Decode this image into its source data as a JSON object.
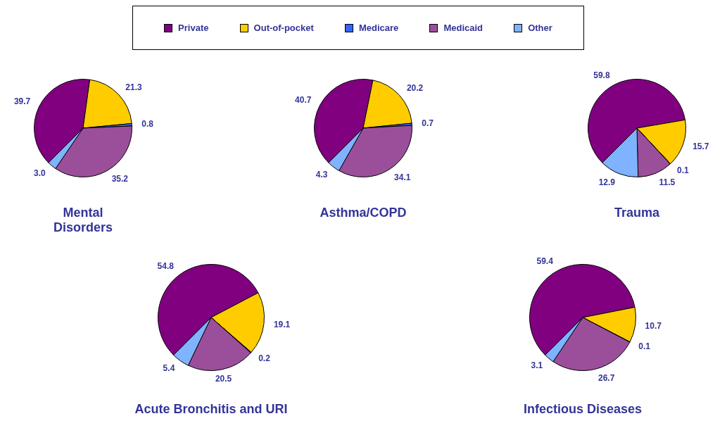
{
  "chart_data": [
    {
      "type": "pie",
      "title": "Mental Disorders",
      "categories": [
        "Private",
        "Out-of-pocket",
        "Medicare",
        "Medicaid",
        "Other"
      ],
      "values": [
        39.7,
        21.3,
        0.8,
        35.2,
        3.0
      ],
      "colors": [
        "#800080",
        "#ffcc00",
        "#3366ff",
        "#9b4f9b",
        "#7fb2ff"
      ],
      "value_labels": [
        "39.7",
        "21.3",
        "0.8",
        "35.2",
        "3.0"
      ],
      "legend": "top"
    },
    {
      "type": "pie",
      "title": "Asthma/COPD",
      "categories": [
        null,
        null,
        null,
        null,
        null
      ],
      "values": [
        40.7,
        20.2,
        0.7,
        34.1,
        4.3
      ],
      "colors": [
        "#800080",
        "#ffcc00",
        "#3366ff",
        "#9b4f9b",
        "#7fb2ff"
      ],
      "data_labels": true
    },
    {
      "type": "pie",
      "title": "Trauma",
      "categories": [
        null,
        null,
        null,
        null,
        null
      ],
      "values": [
        59.8,
        15.7,
        0.1,
        11.5,
        12.9
      ],
      "colors": [
        "#800080",
        "#ffcc00",
        "#3366ff",
        "#9b4f9b",
        "#7fb2ff"
      ],
      "data_labels": true
    },
    {
      "type": "pie",
      "title": "Acute Bronchitis and URI",
      "categories": [
        null,
        null,
        null,
        null,
        null
      ],
      "values": [
        54.8,
        19.1,
        0.2,
        20.5,
        5.4
      ],
      "colors": [
        "#800080",
        "#ffcc00",
        "#3366ff",
        "#9b4f9b",
        "#7fb2ff"
      ],
      "data_labels": true
    },
    {
      "type": "pie",
      "title": "Infectious Diseases",
      "categories": [
        null,
        null,
        null,
        null,
        null
      ],
      "values": [
        59.4,
        10.7,
        0.1,
        26.7,
        3.1
      ],
      "colors": [
        "#800080",
        "#ffcc00",
        "#3366ff",
        "#9b4f9b",
        "#7fb2ff"
      ],
      "data_labels": true
    }
  ]
}
